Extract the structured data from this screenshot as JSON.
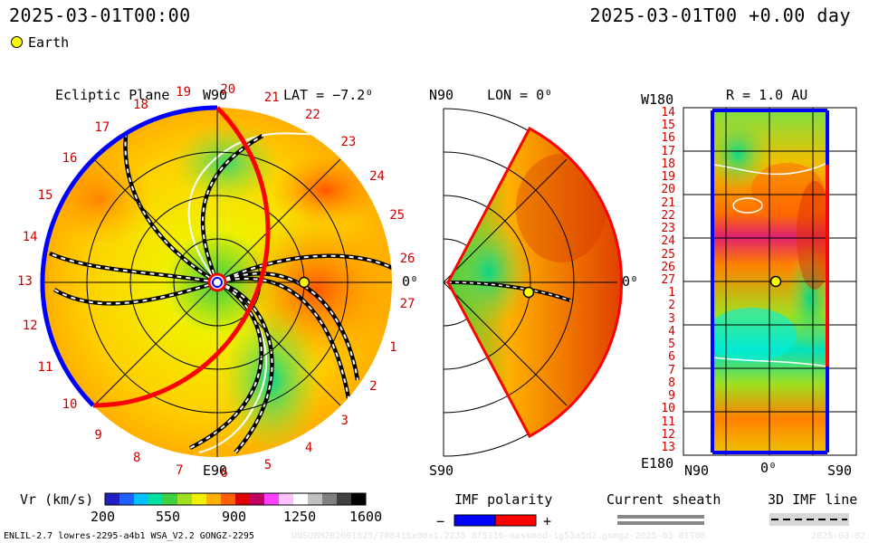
{
  "header": {
    "timestamp_left": "2025-03-01T00:00",
    "timestamp_right": "2025-03-01T00 +0.00 day"
  },
  "legend": {
    "marker_label": "Earth"
  },
  "panels": {
    "ecliptic": {
      "title": "Ecliptic Plane",
      "lat": "LAT = −7.2⁰",
      "top_label": "W90",
      "bottom_label": "E90",
      "right_label": "0⁰",
      "sectors": [
        "19",
        "20",
        "21",
        "22",
        "23",
        "24",
        "25",
        "26",
        "27",
        "1",
        "2",
        "3",
        "4",
        "5",
        "6",
        "7",
        "8",
        "9",
        "10",
        "11",
        "12",
        "13",
        "14",
        "15",
        "16",
        "17",
        "18"
      ]
    },
    "meridional": {
      "lon": "LON = 0⁰",
      "top_label": "N90",
      "bottom_label": "S90",
      "right_label": "0⁰"
    },
    "sphere": {
      "title": "R = 1.0 AU",
      "top_label": "W180",
      "bottom_label": "E180",
      "x_labels": [
        "N90",
        "0⁰",
        "S90"
      ],
      "sectors": [
        "14",
        "15",
        "16",
        "17",
        "18",
        "19",
        "20",
        "21",
        "22",
        "23",
        "24",
        "25",
        "26",
        "27",
        "1",
        "2",
        "3",
        "4",
        "5",
        "6",
        "7",
        "8",
        "9",
        "10",
        "11",
        "12",
        "13"
      ]
    }
  },
  "colorbar": {
    "label": "Vr (km/s)",
    "ticks": [
      "200",
      "550",
      "900",
      "1250",
      "1600"
    ],
    "colors": [
      "#2020c0",
      "#2060ff",
      "#00c0ff",
      "#00e0a0",
      "#40d040",
      "#a0e020",
      "#f0f000",
      "#ffb000",
      "#ff6000",
      "#e00000",
      "#c00060",
      "#ff40ff",
      "#ffc0ff",
      "#ffffff",
      "#c0c0c0",
      "#808080",
      "#404040",
      "#000000"
    ]
  },
  "imf_polarity": {
    "label": "IMF polarity",
    "minus": "−",
    "plus": "+",
    "neg_color": "#0000ff",
    "pos_color": "#ff0000"
  },
  "current_sheath": {
    "label": "Current sheath"
  },
  "imf_line": {
    "label": "3D IMF line"
  },
  "footer": {
    "model": "ENLIL-2.7 lowres-2295-a4b1 WSA_V2.2 GONGZ-2295",
    "run_id": "UNSUBM202001825/708415x90x1.2235-8f5116-maskmod-1g53a5d2.gongz-2025-03-01T00",
    "date": "2025-03-02"
  },
  "chart_data": {
    "type": "heatmap",
    "quantity": "Vr (km/s)",
    "colorbar_range": [
      200,
      1600
    ],
    "time": "2025-03-01T00 +0.00 day",
    "earth": {
      "lat_deg": -7.2,
      "lon_deg": 0,
      "r_au": 1.0
    }
  }
}
